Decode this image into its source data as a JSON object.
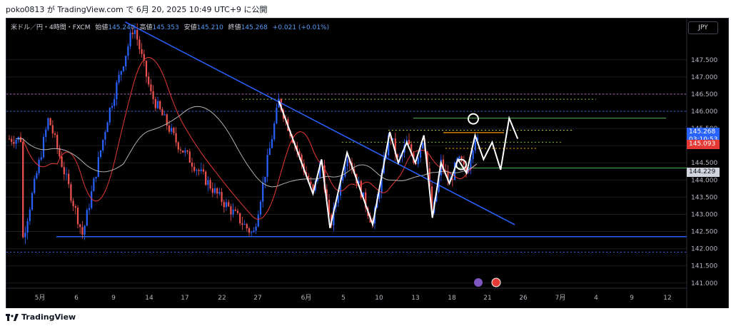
{
  "header": {
    "publish_line": "poko0813 が TradingView.com で 6月 20, 2025 10:49 UTC+9 に公開"
  },
  "symbol_bar": {
    "name": "米ドル／円・4時間・FXCM",
    "open_label": "始値",
    "open_value": "145.240",
    "high_label": "高値",
    "high_value": "145.353",
    "low_label": "安値",
    "low_value": "145.210",
    "close_label": "終値",
    "close_value": "145.268",
    "change": "+0.021 (+0.01%)"
  },
  "currency_button": "JPY",
  "footer": {
    "logo_text": "TradingView"
  },
  "chart_data": {
    "type": "line",
    "y_axis": {
      "range": [
        140.85,
        148.7
      ],
      "ticks": [
        "147.500",
        "147.000",
        "146.500",
        "146.000",
        "145.500",
        "145.000",
        "144.500",
        "144.000",
        "143.500",
        "143.000",
        "142.500",
        "142.000",
        "141.500",
        "141.000"
      ]
    },
    "x_axis": {
      "ticks": [
        "5月",
        "6",
        "9",
        "14",
        "17",
        "22",
        "27",
        "6月",
        "5",
        "10",
        "13",
        "18",
        "21",
        "26",
        "7月",
        "4",
        "9",
        "12"
      ]
    },
    "price_labels": {
      "last_price": "145.268",
      "countdown": "03:10:53",
      "red_level": "145.093",
      "gray_level": "144.229"
    },
    "price_path": [
      [
        "4/29",
        142.3
      ],
      [
        "5/2",
        145.8
      ],
      [
        "5/6",
        142.4
      ],
      [
        "5/9",
        145.9
      ],
      [
        "5/12",
        148.5
      ],
      [
        "5/14",
        146.5
      ],
      [
        "5/17",
        145.1
      ],
      [
        "5/22",
        143.5
      ],
      [
        "5/26",
        142.4
      ],
      [
        "5/29",
        146.3
      ],
      [
        "6/2",
        143.6
      ],
      [
        "6/3",
        144.6
      ],
      [
        "6/4",
        142.6
      ],
      [
        "6/6",
        144.8
      ],
      [
        "6/9",
        142.7
      ],
      [
        "6/11",
        145.4
      ],
      [
        "6/12",
        144.5
      ],
      [
        "6/13",
        145.1
      ],
      [
        "6/14",
        144.5
      ],
      [
        "6/15",
        145.3
      ],
      [
        "6/16",
        142.9
      ],
      [
        "6/17",
        144.5
      ],
      [
        "6/18",
        143.9
      ],
      [
        "6/19",
        144.6
      ],
      [
        "6/20",
        144.2
      ],
      [
        "6/21",
        145.3
      ],
      [
        "6/22",
        144.6
      ],
      [
        "6/23",
        145.1
      ],
      [
        "6/24",
        144.3
      ],
      [
        "6/25",
        145.8
      ],
      [
        "6/26",
        145.2
      ]
    ],
    "levels": [
      {
        "name": "magenta-dotted",
        "price": 146.5,
        "color": "#c060c0"
      },
      {
        "name": "blue-dotted-upper",
        "price": 146.0,
        "color": "#3a5fe0"
      },
      {
        "name": "blue-dotted-lower",
        "price": 141.9,
        "color": "#3a5fe0"
      },
      {
        "name": "support",
        "price": 142.35,
        "color": "#2962ff"
      },
      {
        "name": "green-top",
        "price": 145.8,
        "color": "#4caf50"
      },
      {
        "name": "green-bottom",
        "price": 144.35,
        "color": "#4caf50"
      }
    ],
    "colors": {
      "background": "#000000",
      "up_candle": "#2962ff",
      "down_candle": "#ef5350",
      "trendline": "#2962ff",
      "wave": "#ffffff",
      "ma_fast": "#e53935",
      "ma_slow": "#b0b0b0"
    }
  }
}
